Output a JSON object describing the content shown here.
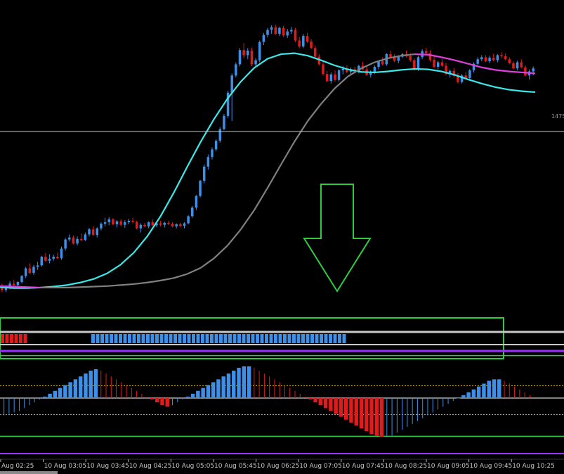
{
  "colors": {
    "background": "#000000",
    "bull": "#3d8fe8",
    "bear": "#e11b1b",
    "ma_fast": "#3ce8e8",
    "ma_slow_rising": "#808080",
    "ma_slow_falling": "#e040e0",
    "annotation": "#2ecc40",
    "level_line": "#c8c8c8",
    "purple_line": "#9b30ff",
    "dotted_level": "#c8a800"
  },
  "price_axis_label": "1475",
  "chart_data": [
    {
      "type": "candlestick",
      "title": "",
      "x_tick_labels": [
        "Aug 02:25",
        "10 Aug 03:05",
        "10 Aug 03:45",
        "10 Aug 04:25",
        "10 Aug 05:05",
        "10 Aug 05:45",
        "10 Aug 06:25",
        "10 Aug 07:05",
        "10 Aug 07:45",
        "10 Aug 08:25",
        "10 Aug 09:05",
        "10 Aug 09:45",
        "10 Aug 10:25"
      ],
      "y_visible_label": "1475",
      "grid": false,
      "ohlc_relative": [
        [
          6,
          6.5,
          4.8,
          5.2
        ],
        [
          5.2,
          6.2,
          4.8,
          5.8
        ],
        [
          5.8,
          7,
          5.4,
          6.5
        ],
        [
          6.5,
          7.2,
          6,
          6.2
        ],
        [
          6.2,
          7,
          5.8,
          6.8
        ],
        [
          6.8,
          8.2,
          6.5,
          8
        ],
        [
          8,
          9.8,
          7.6,
          9.5
        ],
        [
          9.5,
          10.5,
          8.4,
          8.6
        ],
        [
          8.6,
          10.2,
          8.2,
          9.8
        ],
        [
          9.8,
          10.8,
          9.2,
          10.1
        ],
        [
          10.1,
          12,
          9.8,
          11.8
        ],
        [
          11.8,
          12.5,
          10.8,
          11
        ],
        [
          11,
          12.3,
          10.5,
          11.4
        ],
        [
          11.4,
          12.2,
          11,
          11.8
        ],
        [
          11.8,
          12.6,
          11.3,
          11.5
        ],
        [
          11.5,
          13.8,
          11.2,
          13.4
        ],
        [
          13.4,
          15.5,
          13,
          15.2
        ],
        [
          15.2,
          16.2,
          14.8,
          15.6
        ],
        [
          15.6,
          16,
          14.2,
          14.4
        ],
        [
          14.4,
          15.8,
          14,
          15.3
        ],
        [
          15.3,
          16.4,
          14.8,
          15.1
        ],
        [
          15.1,
          16.6,
          14.9,
          16.2
        ],
        [
          16.2,
          17.5,
          15.8,
          17.2
        ],
        [
          17.2,
          17.8,
          16,
          16.1
        ],
        [
          16.1,
          17.6,
          15.6,
          17.4
        ],
        [
          17.4,
          18.6,
          17,
          18.3
        ],
        [
          18.3,
          19.5,
          17.8,
          18.6
        ],
        [
          18.6,
          19.6,
          18,
          19.2
        ],
        [
          19.2,
          19.4,
          18,
          18.2
        ],
        [
          18.2,
          19,
          17.6,
          18.8
        ],
        [
          18.8,
          19.2,
          17.8,
          18.1
        ],
        [
          18.1,
          19,
          17.5,
          18.6
        ],
        [
          18.6,
          19.3,
          18.2,
          18.9
        ],
        [
          18.9,
          19.5,
          18.4,
          18.7
        ],
        [
          18.7,
          18.9,
          17.2,
          17.4
        ],
        [
          17.4,
          18.4,
          16.6,
          18.1
        ],
        [
          18.1,
          18.5,
          17.6,
          17.8
        ],
        [
          17.8,
          18.8,
          17.4,
          18.6
        ],
        [
          18.6,
          19.2,
          17.9,
          18
        ],
        [
          18,
          18.8,
          17.6,
          18.4
        ],
        [
          18.4,
          18.9,
          17.8,
          18.1
        ],
        [
          18.1,
          18.7,
          17.6,
          18.5
        ],
        [
          18.5,
          18.9,
          18,
          18.3
        ],
        [
          18.3,
          18.6,
          17.6,
          17.8
        ],
        [
          17.8,
          18.4,
          17.4,
          18.2
        ],
        [
          18.2,
          18.5,
          17.6,
          17.9
        ],
        [
          17.9,
          18.6,
          17.4,
          18.4
        ],
        [
          18.4,
          20,
          18.2,
          19.8
        ],
        [
          19.8,
          21.8,
          19.5,
          21.5
        ],
        [
          21.5,
          24,
          21,
          23.8
        ],
        [
          23.8,
          27,
          23.5,
          26.8
        ],
        [
          26.8,
          30,
          26.3,
          29.6
        ],
        [
          29.6,
          32,
          29,
          31.5
        ],
        [
          31.5,
          33.4,
          31,
          33
        ],
        [
          33,
          35,
          32.6,
          34.7
        ],
        [
          34.7,
          37.4,
          34.3,
          37
        ],
        [
          37,
          40,
          36.8,
          39.6
        ],
        [
          39.6,
          44.6,
          39.2,
          44.2
        ],
        [
          44.2,
          48,
          38.6,
          47.6
        ],
        [
          47.6,
          50.2,
          47.2,
          49.8
        ],
        [
          49.8,
          53,
          49.4,
          52.6
        ],
        [
          52.6,
          54,
          51,
          51.6
        ],
        [
          51.6,
          53,
          50.8,
          52.5
        ],
        [
          52.5,
          53.1,
          49.4,
          49.8
        ],
        [
          49.8,
          51,
          49.2,
          50.6
        ],
        [
          50.6,
          54.5,
          50.2,
          54.2
        ],
        [
          54.2,
          56,
          53.6,
          55.6
        ],
        [
          55.6,
          57,
          55.1,
          56.6
        ],
        [
          56.6,
          57.5,
          55.8,
          57.1
        ],
        [
          57.1,
          57.6,
          55.6,
          55.8
        ],
        [
          55.8,
          57.2,
          55.4,
          57
        ],
        [
          57,
          57.4,
          55.2,
          55.5
        ],
        [
          55.5,
          56.8,
          55,
          56.3
        ],
        [
          56.3,
          57.2,
          55.8,
          56.6
        ],
        [
          56.6,
          57,
          54.2,
          54.5
        ],
        [
          54.5,
          55.2,
          53,
          53.3
        ],
        [
          53.3,
          55.8,
          53,
          55.4
        ],
        [
          55.4,
          56,
          54,
          54.3
        ],
        [
          54.3,
          54.8,
          52.8,
          53
        ],
        [
          53,
          53.5,
          51,
          51.3
        ],
        [
          51.3,
          51.8,
          49.6,
          49.8
        ],
        [
          49.8,
          50.5,
          47.6,
          47.9
        ],
        [
          47.9,
          48.5,
          46.2,
          46.5
        ],
        [
          46.5,
          48.2,
          46,
          47.8
        ],
        [
          47.8,
          48.6,
          46.4,
          46.7
        ],
        [
          46.7,
          48.8,
          46.4,
          48.6
        ],
        [
          48.6,
          49.5,
          47.8,
          48.9
        ],
        [
          48.9,
          49.6,
          48,
          48.3
        ],
        [
          48.3,
          49.2,
          47.6,
          48.8
        ],
        [
          48.8,
          49.3,
          48,
          48.4
        ],
        [
          48.4,
          49.7,
          48,
          49.5
        ],
        [
          49.5,
          50.3,
          48.6,
          48.8
        ],
        [
          48.8,
          49.4,
          47.5,
          47.7
        ],
        [
          47.7,
          48.6,
          47.2,
          48.3
        ],
        [
          48.3,
          49.6,
          47.9,
          49.3
        ],
        [
          49.3,
          50.6,
          48.8,
          50.4
        ],
        [
          50.4,
          51.2,
          49.6,
          49.8
        ],
        [
          49.8,
          52,
          49.5,
          51.8
        ],
        [
          51.8,
          52.5,
          51,
          51.2
        ],
        [
          51.2,
          51.8,
          50.2,
          50.5
        ],
        [
          50.5,
          51.6,
          50,
          51.3
        ],
        [
          51.3,
          52.1,
          51,
          51.8
        ],
        [
          51.8,
          52.5,
          51.2,
          51.4
        ],
        [
          51.4,
          52,
          50.3,
          50.6
        ],
        [
          50.6,
          51,
          48.6,
          48.8
        ],
        [
          48.8,
          51.5,
          48.5,
          51.2
        ],
        [
          51.2,
          52.8,
          50.8,
          52.4
        ],
        [
          52.4,
          53.1,
          51.8,
          52
        ],
        [
          52,
          52.6,
          50.4,
          50.7
        ],
        [
          50.7,
          51.4,
          49,
          49.3
        ],
        [
          49.3,
          50.5,
          48.8,
          50.2
        ],
        [
          50.2,
          50.9,
          49.3,
          49.5
        ],
        [
          49.5,
          50.1,
          47.6,
          47.9
        ],
        [
          47.9,
          48.8,
          47.2,
          48.5
        ],
        [
          48.5,
          49.1,
          47.2,
          47.5
        ],
        [
          47.5,
          48.1,
          46,
          46.3
        ],
        [
          46.3,
          47.9,
          46,
          47.6
        ],
        [
          47.6,
          48.3,
          46.9,
          47.1
        ],
        [
          47.1,
          48.9,
          46.8,
          48.6
        ],
        [
          48.6,
          50.2,
          48.2,
          49.9
        ],
        [
          49.9,
          51.2,
          49.6,
          50.8
        ],
        [
          50.8,
          51.6,
          50.4,
          51.2
        ],
        [
          51.2,
          51.6,
          50.2,
          50.4
        ],
        [
          50.4,
          51.5,
          50,
          51.1
        ],
        [
          51.1,
          51.9,
          50.4,
          50.6
        ],
        [
          50.6,
          51.8,
          50.2,
          51.6
        ],
        [
          51.6,
          52.2,
          51,
          51.4
        ],
        [
          51.4,
          52,
          50.6,
          50.8
        ],
        [
          50.8,
          51.2,
          49.8,
          50
        ],
        [
          50,
          50.4,
          48.8,
          49
        ],
        [
          49,
          50.5,
          48.6,
          50.2
        ],
        [
          50.2,
          50.8,
          49,
          49.2
        ],
        [
          49.2,
          49.6,
          47.4,
          47.6
        ],
        [
          47.6,
          48.8,
          46.8,
          48.4
        ],
        [
          48.4,
          49.4,
          47.6,
          49
        ]
      ],
      "ma_slow_relative": [
        6,
        5.9,
        5.8,
        5.7,
        5.7,
        5.7,
        5.8,
        5.9,
        6,
        6.2,
        6.4,
        6.7,
        7.1,
        7.6,
        8.4,
        9.6,
        11.5,
        14,
        17.2,
        21,
        25.4,
        30,
        34.5,
        38.6,
        42,
        45,
        47.4,
        49,
        50.2,
        51,
        51.5,
        51.8,
        51.7,
        51.2,
        50.6,
        49.9,
        49.2,
        48.7,
        48.4,
        48.2,
        48
      ],
      "ma_fast_relative": [
        5.8,
        5.6,
        5.6,
        5.7,
        5.9,
        6.2,
        6.7,
        7.4,
        8.5,
        10.2,
        12.6,
        15.8,
        19.8,
        24.5,
        29.6,
        34.5,
        39,
        43,
        46.4,
        49.1,
        50.9,
        51.8,
        52,
        51.5,
        50.6,
        49.6,
        48.8,
        48.3,
        48.2,
        48.4,
        48.7,
        48.9,
        48.8,
        48.4,
        47.7,
        46.8,
        46,
        45.3,
        44.8,
        44.5,
        44.3
      ],
      "upper_strip": {
        "red_segments": 6,
        "blue_segments": 56
      },
      "oscillator": {
        "type": "histogram",
        "values": [
          -12,
          -11,
          -10,
          -9,
          -7,
          -5,
          -3,
          -1,
          1,
          3,
          5,
          7,
          9,
          11,
          13,
          15,
          17,
          19,
          20,
          19,
          17,
          15,
          13,
          11,
          9,
          7,
          5,
          3,
          1,
          -1,
          -3,
          -5,
          -6,
          -5,
          -3,
          -1,
          1,
          3,
          5,
          7,
          9,
          11,
          13,
          15,
          17,
          19,
          21,
          22,
          22,
          21,
          19,
          17,
          15,
          13,
          11,
          9,
          7,
          5,
          3,
          1,
          -1,
          -3,
          -5,
          -7,
          -9,
          -11,
          -13,
          -15,
          -17,
          -19,
          -21,
          -23,
          -25,
          -26,
          -27,
          -27,
          -26,
          -24,
          -22,
          -20,
          -18,
          -16,
          -14,
          -12,
          -10,
          -8,
          -6,
          -4,
          -2,
          0,
          2,
          4,
          6,
          8,
          10,
          12,
          13,
          13,
          12,
          10,
          8,
          6,
          4,
          2
        ],
        "dotted_levels": [
          10,
          -10
        ],
        "green_bands": [
          28,
          -28
        ]
      }
    }
  ]
}
